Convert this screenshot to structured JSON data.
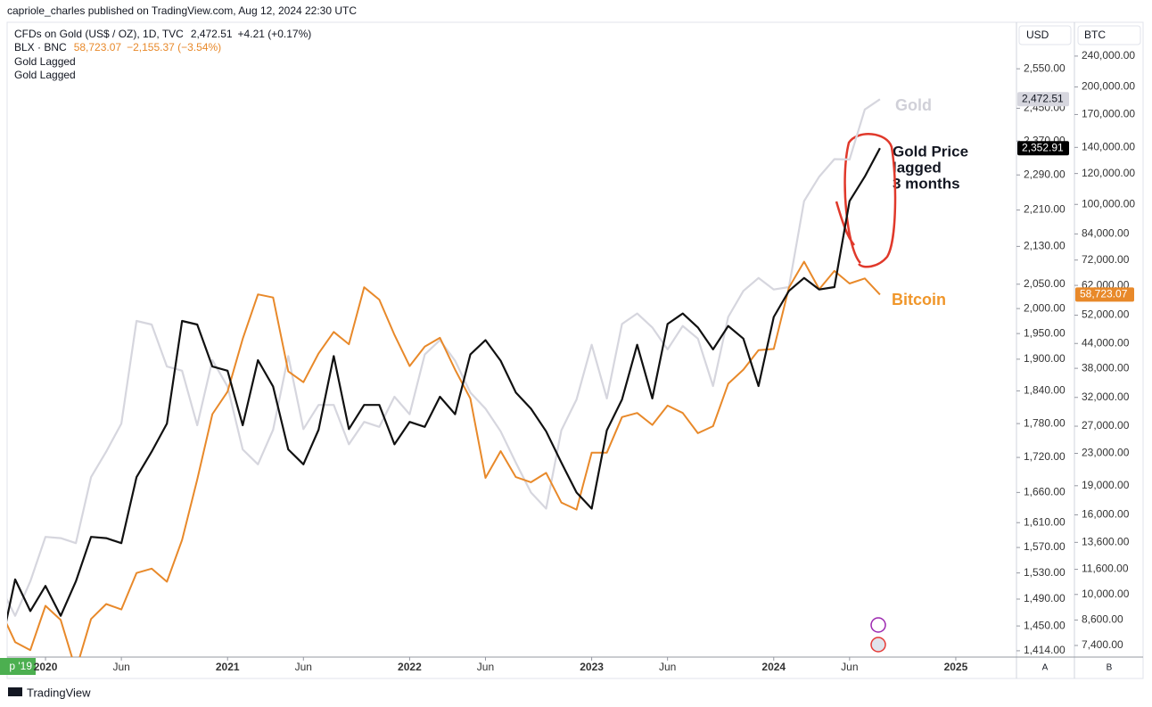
{
  "top_bar": "capriole_charles published on TradingView.com, Aug 12, 2024 22:30 UTC",
  "footer": "TradingView",
  "chart_data": {
    "type": "line",
    "legend_extra": [
      "Gold Lagged"
    ],
    "axis_headers": [
      "USD",
      "BTC"
    ],
    "axis_footers": [
      "A",
      "B"
    ],
    "x_cursor_label": "p '19",
    "annotations": [
      "Gold",
      "Gold Price",
      "lagged",
      "3 months",
      "Bitcoin"
    ],
    "x": [
      "2019-10",
      "2019-11",
      "2019-12",
      "2020-01",
      "2020-02",
      "2020-03",
      "2020-04",
      "2020-05",
      "2020-06",
      "2020-07",
      "2020-08",
      "2020-09",
      "2020-10",
      "2020-11",
      "2020-12",
      "2021-01",
      "2021-02",
      "2021-03",
      "2021-04",
      "2021-05",
      "2021-06",
      "2021-07",
      "2021-08",
      "2021-09",
      "2021-10",
      "2021-11",
      "2021-12",
      "2022-01",
      "2022-02",
      "2022-03",
      "2022-04",
      "2022-05",
      "2022-06",
      "2022-07",
      "2022-08",
      "2022-09",
      "2022-10",
      "2022-11",
      "2022-12",
      "2023-01",
      "2023-02",
      "2023-03",
      "2023-04",
      "2023-05",
      "2023-06",
      "2023-07",
      "2023-08",
      "2023-09",
      "2023-10",
      "2023-11",
      "2023-12",
      "2024-01",
      "2024-02",
      "2024-03",
      "2024-04",
      "2024-05",
      "2024-06",
      "2024-07",
      "2024-08"
    ],
    "series": [
      {
        "name": "CFDs on Gold (US$ / OZ), 1D, TVC",
        "color": "#d6d6de",
        "last_label": "2,472.51",
        "change_label": "+4.21 (+0.17%)",
        "values": [
          1510,
          1465,
          1517,
          1587,
          1585,
          1577,
          1686,
          1730,
          1780,
          1975,
          1968,
          1886,
          1878,
          1777,
          1898,
          1848,
          1734,
          1708,
          1769,
          1906,
          1770,
          1814,
          1814,
          1743,
          1783,
          1774,
          1829,
          1797,
          1909,
          1937,
          1897,
          1837,
          1807,
          1766,
          1711,
          1660,
          1633,
          1768,
          1824,
          1928,
          1826,
          1969,
          1990,
          1962,
          1919,
          1965,
          1940,
          1849,
          1983,
          2036,
          2063,
          2039,
          2044,
          2230,
          2286,
          2327,
          2326,
          2447,
          2472.51
        ]
      },
      {
        "name": "BLX · BNC",
        "color": "#e8892a",
        "axis": "y2",
        "last_label": "58,723.07",
        "change_label": "−2,155.37 (−3.54%)",
        "values": [
          9150,
          7550,
          7200,
          9350,
          8600,
          6400,
          8650,
          9450,
          9150,
          11350,
          11650,
          10780,
          13800,
          19700,
          29000,
          33100,
          45200,
          58800,
          57700,
          37300,
          35000,
          41500,
          47100,
          43800,
          61300,
          57000,
          46300,
          38500,
          43200,
          45500,
          37700,
          31800,
          19900,
          23300,
          20000,
          19400,
          20500,
          17200,
          16500,
          23100,
          23100,
          28500,
          29200,
          27200,
          30500,
          29200,
          25900,
          27000,
          34700,
          37700,
          42300,
          42600,
          61200,
          71300,
          60600,
          67500,
          62700,
          64600,
          58723.07
        ]
      },
      {
        "name": "Gold Lagged",
        "color": "#111111",
        "last_label": "2,352.91",
        "values": [
          1414,
          1520,
          1472,
          1510,
          1465,
          1517,
          1587,
          1585,
          1577,
          1686,
          1730,
          1780,
          1975,
          1968,
          1886,
          1878,
          1777,
          1898,
          1848,
          1734,
          1708,
          1769,
          1906,
          1770,
          1814,
          1814,
          1743,
          1783,
          1774,
          1829,
          1797,
          1909,
          1937,
          1897,
          1837,
          1807,
          1766,
          1711,
          1660,
          1633,
          1768,
          1824,
          1928,
          1826,
          1969,
          1990,
          1962,
          1919,
          1965,
          1940,
          1849,
          1983,
          2036,
          2063,
          2039,
          2044,
          2230,
          2286,
          2352.91
        ]
      }
    ],
    "xlim": [
      "2019-10",
      "2025-05"
    ],
    "xticks": [
      {
        "value": "2020-01",
        "label": "2020"
      },
      {
        "value": "2020-06",
        "label": "Jun"
      },
      {
        "value": "2021-01",
        "label": "2021"
      },
      {
        "value": "2021-06",
        "label": "Jun"
      },
      {
        "value": "2022-01",
        "label": "2022"
      },
      {
        "value": "2022-06",
        "label": "Jun"
      },
      {
        "value": "2023-01",
        "label": "2023"
      },
      {
        "value": "2023-06",
        "label": "Jun"
      },
      {
        "value": "2024-01",
        "label": "2024"
      },
      {
        "value": "2024-06",
        "label": "Jun"
      },
      {
        "value": "2025-01",
        "label": "2025"
      }
    ],
    "log_scale": true,
    "ylim": [
      1405,
      2673
    ],
    "yticks": [
      {
        "value": 2550,
        "label": "2,550.00"
      },
      {
        "value": 2450,
        "label": "2,450.00"
      },
      {
        "value": 2370,
        "label": "2,370.00"
      },
      {
        "value": 2290,
        "label": "2,290.00"
      },
      {
        "value": 2210,
        "label": "2,210.00"
      },
      {
        "value": 2130,
        "label": "2,130.00"
      },
      {
        "value": 2050,
        "label": "2,050.00"
      },
      {
        "value": 2000,
        "label": "2,000.00"
      },
      {
        "value": 1950,
        "label": "1,950.00"
      },
      {
        "value": 1900,
        "label": "1,900.00"
      },
      {
        "value": 1840,
        "label": "1,840.00"
      },
      {
        "value": 1780,
        "label": "1,780.00"
      },
      {
        "value": 1720,
        "label": "1,720.00"
      },
      {
        "value": 1660,
        "label": "1,660.00"
      },
      {
        "value": 1610,
        "label": "1,610.00"
      },
      {
        "value": 1570,
        "label": "1,570.00"
      },
      {
        "value": 1530,
        "label": "1,530.00"
      },
      {
        "value": 1490,
        "label": "1,490.00"
      },
      {
        "value": 1450,
        "label": "1,450.00"
      },
      {
        "value": 1414,
        "label": "1,414.00"
      }
    ],
    "y2lim": [
      6910,
      293000
    ],
    "y2ticks": [
      {
        "value": 240000,
        "label": "240,000.00"
      },
      {
        "value": 200000,
        "label": "200,000.00"
      },
      {
        "value": 170000,
        "label": "170,000.00"
      },
      {
        "value": 140000,
        "label": "140,000.00"
      },
      {
        "value": 120000,
        "label": "120,000.00"
      },
      {
        "value": 100000,
        "label": "100,000.00"
      },
      {
        "value": 84000,
        "label": "84,000.00"
      },
      {
        "value": 72000,
        "label": "72,000.00"
      },
      {
        "value": 62000,
        "label": "62,000.00"
      },
      {
        "value": 52000,
        "label": "52,000.00"
      },
      {
        "value": 44000,
        "label": "44,000.00"
      },
      {
        "value": 38000,
        "label": "38,000.00"
      },
      {
        "value": 32000,
        "label": "32,000.00"
      },
      {
        "value": 27000,
        "label": "27,000.00"
      },
      {
        "value": 23000,
        "label": "23,000.00"
      },
      {
        "value": 19000,
        "label": "19,000.00"
      },
      {
        "value": 16000,
        "label": "16,000.00"
      },
      {
        "value": 13600,
        "label": "13,600.00"
      },
      {
        "value": 11600,
        "label": "11,600.00"
      },
      {
        "value": 10000,
        "label": "10,000.00"
      },
      {
        "value": 8600,
        "label": "8,600.00"
      },
      {
        "value": 7400,
        "label": "7,400.00"
      }
    ],
    "grid": false
  }
}
